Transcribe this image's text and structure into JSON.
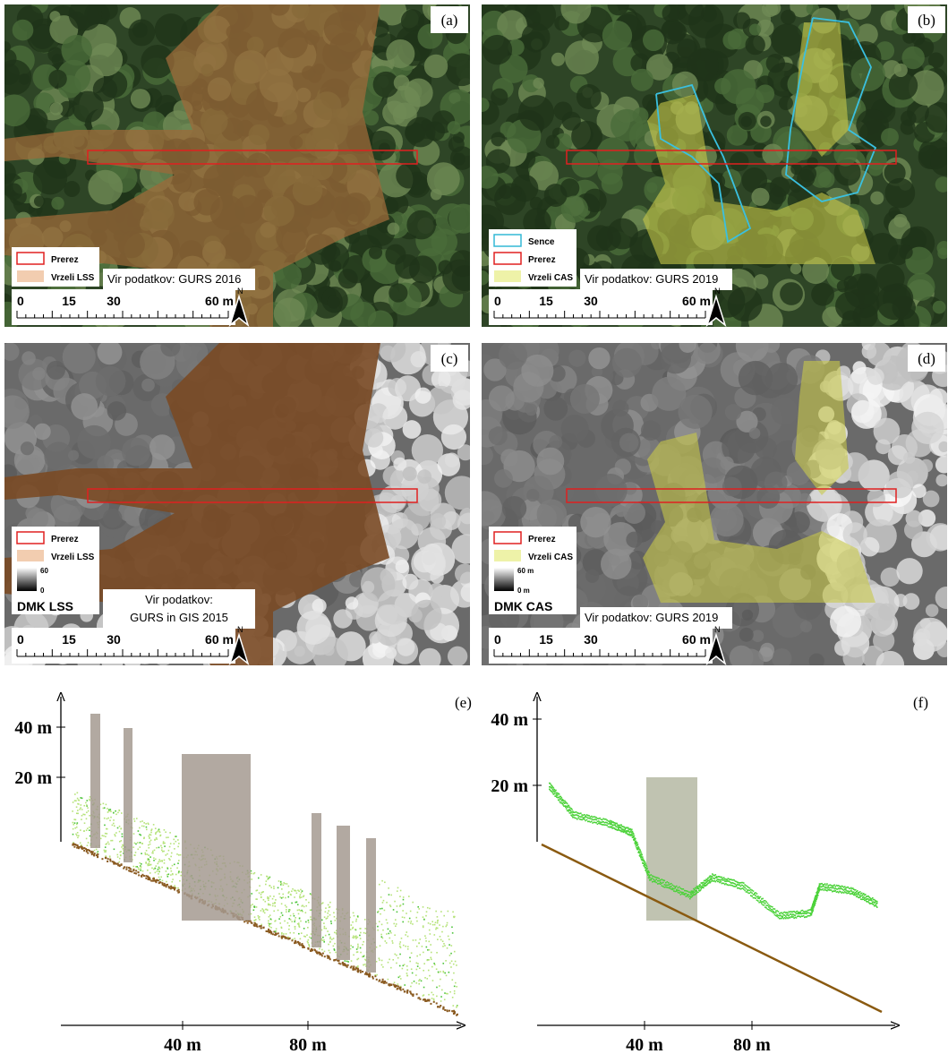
{
  "panels": [
    {
      "label": "(a)",
      "legend": [
        {
          "label": "Prerez",
          "color": "#e02020",
          "outline": true
        },
        {
          "label": "Vrzeli LSS",
          "color": "#f2cdb0",
          "outline": false
        }
      ],
      "source": [
        "Vir podatkov: GURS 2016"
      ],
      "scale": [
        "0",
        "15",
        "30",
        "60 m"
      ],
      "north": "N"
    },
    {
      "label": "(b)",
      "legend": [
        {
          "label": "Sence",
          "color": "#33b8d6",
          "outline": true
        },
        {
          "label": "Prerez",
          "color": "#e02020",
          "outline": true
        },
        {
          "label": "Vrzeli CAS",
          "color": "#eef2a8",
          "outline": false
        }
      ],
      "source": [
        "Vir podatkov: GURS 2019"
      ],
      "scale": [
        "0",
        "15",
        "30",
        "60 m"
      ],
      "north": "N"
    },
    {
      "label": "(c)",
      "legend": [
        {
          "label": "Prerez",
          "color": "#e02020",
          "outline": true
        },
        {
          "label": "Vrzeli LSS",
          "color": "#f2cdb0",
          "outline": false
        }
      ],
      "ramp": {
        "max": "60",
        "min": "0",
        "title": "DMK LSS"
      },
      "source": [
        "Vir podatkov:",
        "GURS in GIS 2015"
      ],
      "scale": [
        "0",
        "15",
        "30",
        "60 m"
      ],
      "north": "N"
    },
    {
      "label": "(d)",
      "legend": [
        {
          "label": "Prerez",
          "color": "#e02020",
          "outline": true
        },
        {
          "label": "Vrzeli CAS",
          "color": "#eef2a8",
          "outline": false
        }
      ],
      "ramp": {
        "max": "60 m",
        "min": "0 m",
        "title": "DMK CAS"
      },
      "source": [
        "Vir podatkov: GURS 2019"
      ],
      "scale": [
        "0",
        "15",
        "30",
        "60 m"
      ],
      "north": "N"
    }
  ],
  "profiles": [
    {
      "label": "(e)",
      "y_labels": [
        "40 m",
        "20 m"
      ],
      "x_labels": [
        "40 m",
        "80 m"
      ]
    },
    {
      "label": "(f)",
      "y_labels": [
        "40 m",
        "20 m"
      ],
      "x_labels": [
        "40 m",
        "80 m"
      ]
    }
  ]
}
